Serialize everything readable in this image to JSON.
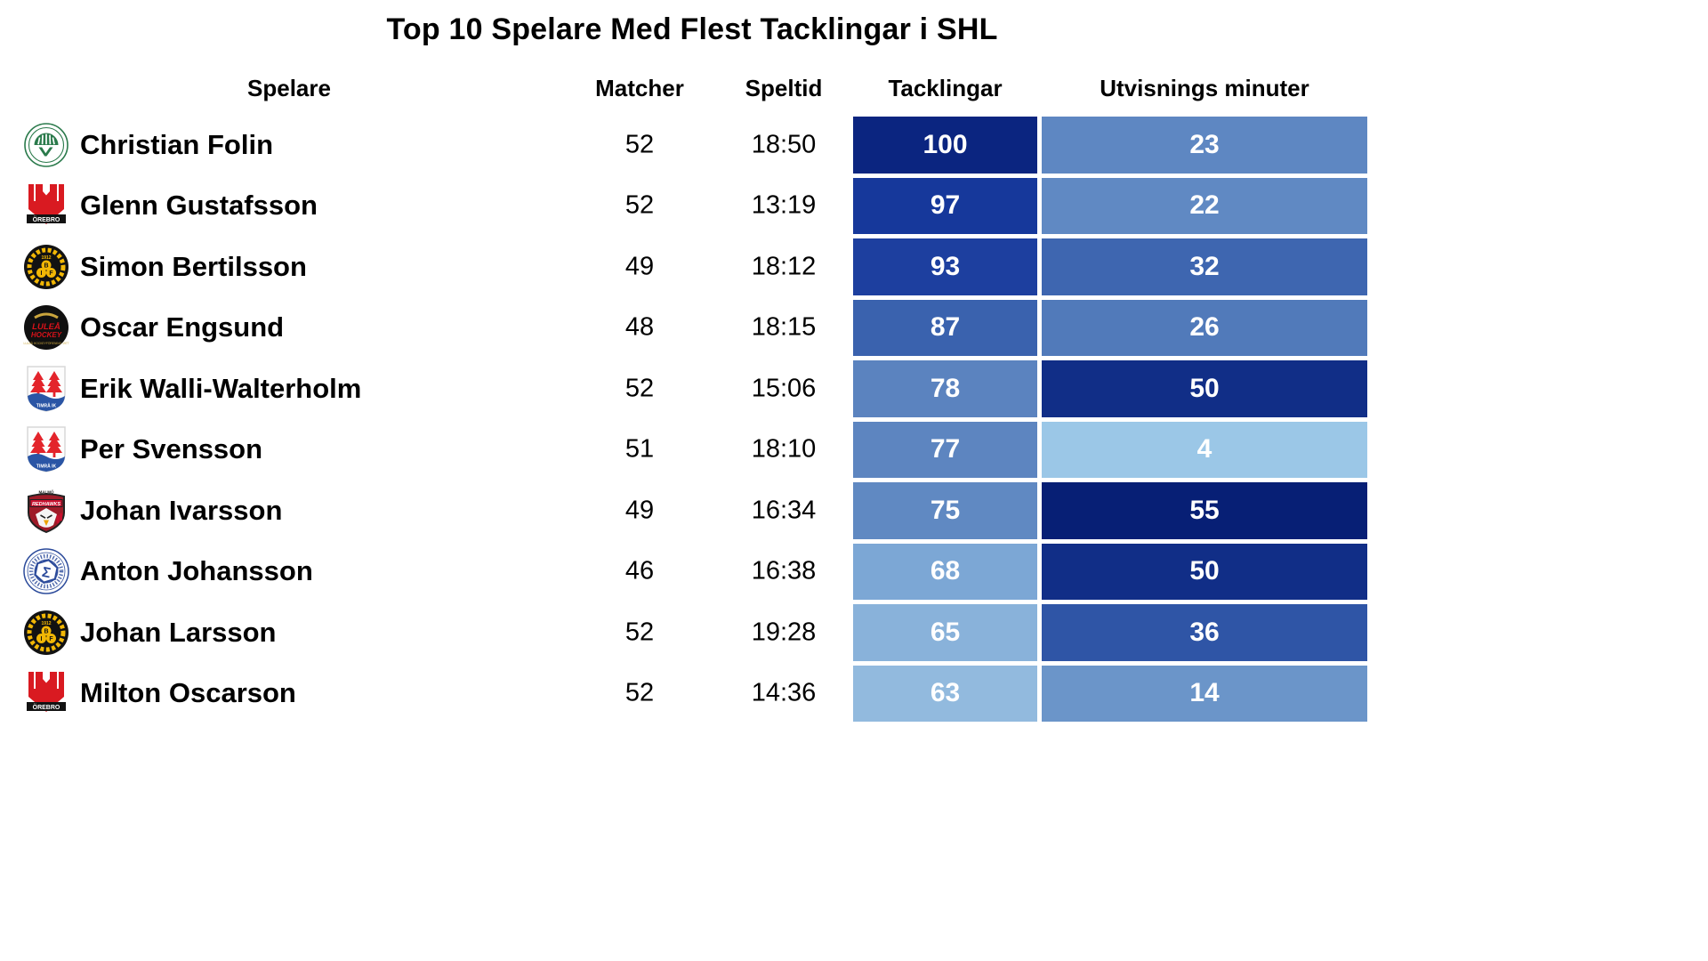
{
  "title": "Top 10 Spelare Med Flest Tacklingar i SHL",
  "columns": {
    "spelare": "Spelare",
    "matcher": "Matcher",
    "speltid": "Speltid",
    "tacklingar": "Tacklingar",
    "utvisningar": "Utvisnings minuter"
  },
  "chart_data": {
    "type": "table",
    "title": "Top 10 Spelare Med Flest Tacklingar i SHL",
    "columns": [
      "Spelare",
      "Matcher",
      "Speltid",
      "Tacklingar",
      "Utvisnings minuter"
    ],
    "heatmap": {
      "low_color": "#9bc7e7",
      "high_color": "#071f75",
      "tacklingar_range": [
        63,
        100
      ],
      "utvisningar_range": [
        4,
        55
      ]
    },
    "rows": [
      {
        "player": "Christian Folin",
        "team": "frolunda",
        "team_logo": "frolunda-logo-icon",
        "matcher": "52",
        "speltid": "18:50",
        "tacklingar": "100",
        "utvisningar": "23",
        "tacklingar_color": "#0b2580",
        "utvisningar_color": "#5e87c2"
      },
      {
        "player": "Glenn Gustafsson",
        "team": "orebro",
        "team_logo": "orebro-logo-icon",
        "matcher": "52",
        "speltid": "13:19",
        "tacklingar": "97",
        "utvisningar": "22",
        "tacklingar_color": "#16389b",
        "utvisningar_color": "#6089c3"
      },
      {
        "player": "Simon Bertilsson",
        "team": "brynas",
        "team_logo": "brynas-logo-icon",
        "matcher": "49",
        "speltid": "18:12",
        "tacklingar": "93",
        "utvisningar": "32",
        "tacklingar_color": "#1d3f9f",
        "utvisningar_color": "#3e66b0"
      },
      {
        "player": "Oscar Engsund",
        "team": "lulea",
        "team_logo": "lulea-logo-icon",
        "matcher": "48",
        "speltid": "18:15",
        "tacklingar": "87",
        "utvisningar": "26",
        "tacklingar_color": "#3a62ae",
        "utvisningar_color": "#517aba"
      },
      {
        "player": "Erik Walli-Walterholm",
        "team": "timra",
        "team_logo": "timra-logo-icon",
        "matcher": "52",
        "speltid": "15:06",
        "tacklingar": "78",
        "utvisningar": "50",
        "tacklingar_color": "#5b83bf",
        "utvisningar_color": "#112e87"
      },
      {
        "player": "Per Svensson",
        "team": "timra",
        "team_logo": "timra-logo-icon",
        "matcher": "51",
        "speltid": "18:10",
        "tacklingar": "77",
        "utvisningar": "4",
        "tacklingar_color": "#5d85c0",
        "utvisningar_color": "#9bc7e7"
      },
      {
        "player": "Johan Ivarsson",
        "team": "malmo",
        "team_logo": "malmo-logo-icon",
        "matcher": "49",
        "speltid": "16:34",
        "tacklingar": "75",
        "utvisningar": "55",
        "tacklingar_color": "#6089c2",
        "utvisningar_color": "#071f75"
      },
      {
        "player": "Anton Johansson",
        "team": "leksands",
        "team_logo": "leksands-logo-icon",
        "matcher": "46",
        "speltid": "16:38",
        "tacklingar": "68",
        "utvisningar": "50",
        "tacklingar_color": "#7ca7d5",
        "utvisningar_color": "#112e87"
      },
      {
        "player": "Johan Larsson",
        "team": "brynas",
        "team_logo": "brynas-logo-icon",
        "matcher": "52",
        "speltid": "19:28",
        "tacklingar": "65",
        "utvisningar": "36",
        "tacklingar_color": "#89b2da",
        "utvisningar_color": "#2f55a6"
      },
      {
        "player": "Milton Oscarson",
        "team": "orebro",
        "team_logo": "orebro-logo-icon",
        "matcher": "52",
        "speltid": "14:36",
        "tacklingar": "63",
        "utvisningar": "14",
        "tacklingar_color": "#92bade",
        "utvisningar_color": "#6b95c9"
      }
    ]
  }
}
